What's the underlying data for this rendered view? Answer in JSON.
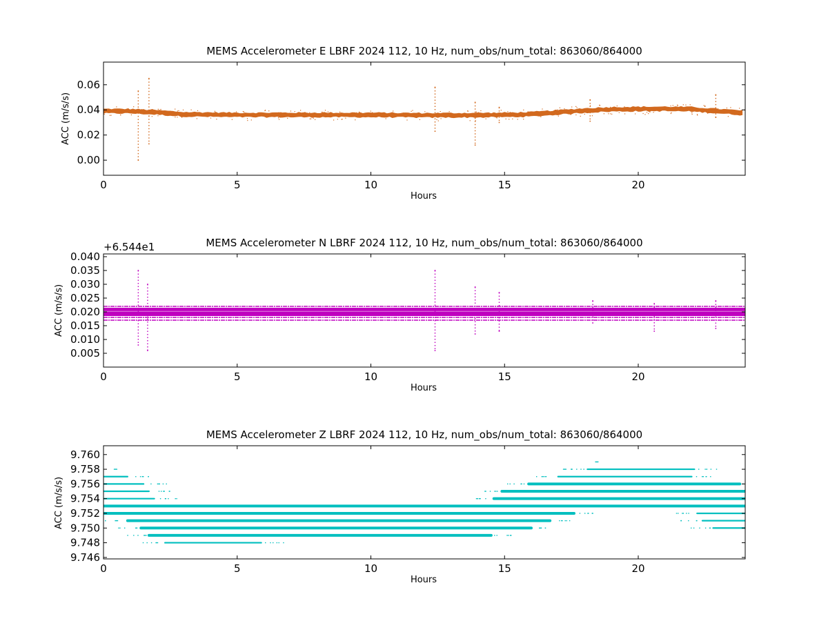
{
  "chart_data": [
    {
      "type": "scatter",
      "title": "MEMS Accelerometer E LBRF 2024 112, 10 Hz, num_obs/num_total: 863060/864000",
      "xlabel": "Hours",
      "ylabel": "ACC (m/s/s)",
      "color": "#d2691e",
      "xlim": [
        0,
        24
      ],
      "ylim": [
        -0.012,
        0.078
      ],
      "xticks": [
        0,
        5,
        10,
        15,
        20
      ],
      "xtick_labels": [
        "0",
        "5",
        "10",
        "15",
        "20"
      ],
      "yticks": [
        0.0,
        0.02,
        0.04,
        0.06
      ],
      "ytick_labels": [
        "0.00",
        "0.02",
        "0.04",
        "0.06"
      ],
      "offset_text": "",
      "trend": [
        [
          0,
          0.039
        ],
        [
          1,
          0.039
        ],
        [
          2,
          0.038
        ],
        [
          3,
          0.0365
        ],
        [
          5,
          0.036
        ],
        [
          8,
          0.036
        ],
        [
          10,
          0.036
        ],
        [
          12,
          0.0357
        ],
        [
          14,
          0.0358
        ],
        [
          15,
          0.036
        ],
        [
          16,
          0.0365
        ],
        [
          17,
          0.038
        ],
        [
          18,
          0.0395
        ],
        [
          19,
          0.0405
        ],
        [
          20,
          0.0407
        ],
        [
          21,
          0.0408
        ],
        [
          22,
          0.0405
        ],
        [
          23,
          0.039
        ],
        [
          24,
          0.0375
        ]
      ],
      "band_halfwidth": 0.0018,
      "spikes": [
        {
          "x": 1.3,
          "lo": 0.0,
          "hi": 0.055
        },
        {
          "x": 1.7,
          "lo": 0.013,
          "hi": 0.065
        },
        {
          "x": 12.4,
          "lo": 0.023,
          "hi": 0.058
        },
        {
          "x": 13.9,
          "lo": 0.012,
          "hi": 0.046
        },
        {
          "x": 14.8,
          "lo": 0.03,
          "hi": 0.042
        },
        {
          "x": 18.2,
          "lo": 0.031,
          "hi": 0.048
        },
        {
          "x": 22.9,
          "lo": 0.034,
          "hi": 0.052
        }
      ]
    },
    {
      "type": "scatter",
      "title": "MEMS Accelerometer N LBRF 2024 112, 10 Hz, num_obs/num_total: 863060/864000",
      "xlabel": "Hours",
      "ylabel": "ACC (m/s/s)",
      "color": "#bf00bf",
      "xlim": [
        0,
        24
      ],
      "ylim": [
        0.0,
        0.041
      ],
      "xticks": [
        0,
        5,
        10,
        15,
        20
      ],
      "xtick_labels": [
        "0",
        "5",
        "10",
        "15",
        "20"
      ],
      "yticks": [
        0.005,
        0.01,
        0.015,
        0.02,
        0.025,
        0.03,
        0.035,
        0.04
      ],
      "ytick_labels": [
        "0.005",
        "0.010",
        "0.015",
        "0.020",
        "0.025",
        "0.030",
        "0.035",
        "0.040"
      ],
      "offset_text": "+6.544e1",
      "band": {
        "lo": 0.0185,
        "hi": 0.0215
      },
      "bands": [
        0.017,
        0.018,
        0.019,
        0.0195,
        0.02,
        0.0205,
        0.021,
        0.022
      ],
      "spikes": [
        {
          "x": 1.3,
          "lo": 0.008,
          "hi": 0.035
        },
        {
          "x": 1.65,
          "lo": 0.006,
          "hi": 0.03
        },
        {
          "x": 12.4,
          "lo": 0.006,
          "hi": 0.035
        },
        {
          "x": 13.9,
          "lo": 0.012,
          "hi": 0.029
        },
        {
          "x": 14.8,
          "lo": 0.013,
          "hi": 0.027
        },
        {
          "x": 18.3,
          "lo": 0.016,
          "hi": 0.024
        },
        {
          "x": 20.6,
          "lo": 0.013,
          "hi": 0.023
        },
        {
          "x": 22.9,
          "lo": 0.014,
          "hi": 0.024
        }
      ]
    },
    {
      "type": "scatter",
      "title": "MEMS Accelerometer Z LBRF 2024 112, 10 Hz, num_obs/num_total: 863060/864000",
      "xlabel": "Hours",
      "ylabel": "ACC (m/s/s)",
      "color": "#00bfbf",
      "xlim": [
        0,
        24
      ],
      "ylim": [
        9.7458,
        9.7612
      ],
      "xticks": [
        0,
        5,
        10,
        15,
        20
      ],
      "xtick_labels": [
        "0",
        "5",
        "10",
        "15",
        "20"
      ],
      "yticks": [
        9.746,
        9.748,
        9.75,
        9.752,
        9.754,
        9.756,
        9.758,
        9.76
      ],
      "ytick_labels": [
        "9.746",
        "9.748",
        "9.750",
        "9.752",
        "9.754",
        "9.756",
        "9.758",
        "9.760"
      ],
      "offset_text": "",
      "levels": [
        {
          "y": 9.759,
          "segments": [
            [
              18.4,
              18.5
            ]
          ]
        },
        {
          "y": 9.758,
          "segments": [
            [
              0.4,
              0.5
            ],
            [
              17.2,
              17.3
            ],
            [
              18.1,
              22.1
            ]
          ]
        },
        {
          "y": 9.757,
          "segments": [
            [
              0.0,
              0.9
            ],
            [
              17.0,
              22.0
            ]
          ]
        },
        {
          "y": 9.756,
          "segments": [
            [
              0.0,
              1.5
            ],
            [
              15.9,
              23.8
            ]
          ]
        },
        {
          "y": 9.755,
          "segments": [
            [
              0.0,
              1.7
            ],
            [
              14.9,
              24.0
            ]
          ]
        },
        {
          "y": 9.754,
          "segments": [
            [
              0.0,
              1.9
            ],
            [
              14.6,
              24.0
            ]
          ]
        },
        {
          "y": 9.753,
          "segments": [
            [
              0.0,
              24.0
            ]
          ]
        },
        {
          "y": 9.752,
          "segments": [
            [
              0.0,
              17.6
            ],
            [
              22.2,
              24.0
            ]
          ]
        },
        {
          "y": 9.751,
          "segments": [
            [
              0.9,
              16.7
            ],
            [
              22.4,
              24.0
            ]
          ]
        },
        {
          "y": 9.75,
          "segments": [
            [
              1.4,
              16.0
            ],
            [
              22.8,
              24.0
            ]
          ]
        },
        {
          "y": 9.749,
          "segments": [
            [
              1.7,
              14.5
            ]
          ]
        },
        {
          "y": 9.748,
          "segments": [
            [
              2.3,
              5.9
            ]
          ]
        }
      ]
    }
  ]
}
